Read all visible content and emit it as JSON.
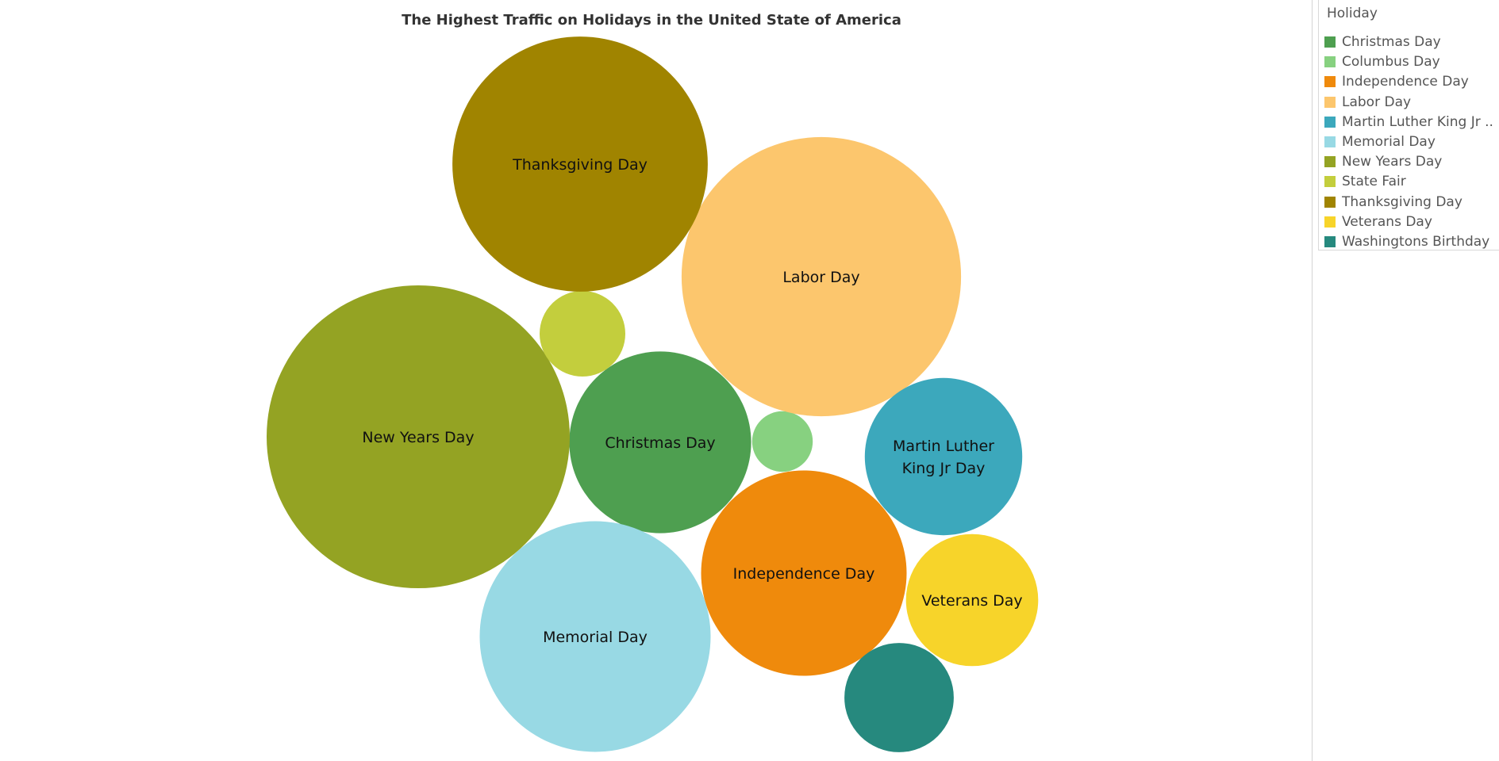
{
  "chart_data": {
    "type": "bubble",
    "title": "The Highest Traffic on  Holidays in the United State of America",
    "legend_title": "Holiday",
    "legend_position": "top-right",
    "size_measure": "traffic (relative, circle area)",
    "series": [
      {
        "name": "Christmas Day",
        "label": "Christmas Day",
        "color": "#4E9F50",
        "value": 36
      },
      {
        "name": "Columbus Day",
        "label": "",
        "color": "#87D180",
        "value": 4
      },
      {
        "name": "Independence Day",
        "label": "Independence Day",
        "color": "#EF8A0C",
        "value": 46
      },
      {
        "name": "Labor Day",
        "label": "Labor Day",
        "color": "#FCC66D",
        "value": 85
      },
      {
        "name": "Martin Luther King Jr ..",
        "label": "Martin Luther King Jr Day",
        "color": "#3CA8BC",
        "value": 27
      },
      {
        "name": "Memorial Day",
        "label": "Memorial Day",
        "color": "#98D9E4",
        "value": 58
      },
      {
        "name": "New Years Day",
        "label": "New Years Day",
        "color": "#94A323",
        "value": 100
      },
      {
        "name": "State Fair",
        "label": "",
        "color": "#C3CE3D",
        "value": 8
      },
      {
        "name": "Thanksgiving Day",
        "label": "Thanksgiving Day",
        "color": "#A08400",
        "value": 71
      },
      {
        "name": "Veterans Day",
        "label": "Veterans Day",
        "color": "#F7D42A",
        "value": 19
      },
      {
        "name": "Washingtons Birthday",
        "label": "",
        "color": "#26897E",
        "value": 13
      }
    ]
  }
}
